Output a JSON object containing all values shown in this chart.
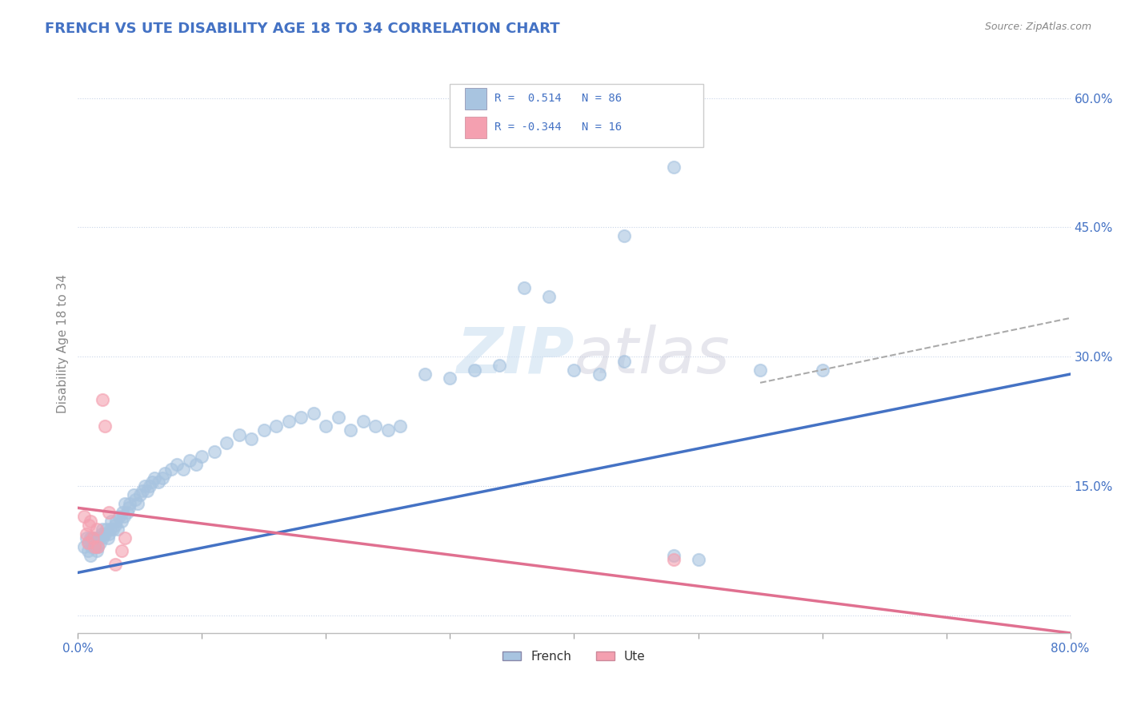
{
  "title": "FRENCH VS UTE DISABILITY AGE 18 TO 34 CORRELATION CHART",
  "source": "Source: ZipAtlas.com",
  "ylabel": "Disability Age 18 to 34",
  "xlim": [
    0.0,
    0.8
  ],
  "ylim": [
    -0.02,
    0.65
  ],
  "french_R": 0.514,
  "french_N": 86,
  "ute_R": -0.344,
  "ute_N": 16,
  "french_color": "#a8c4e0",
  "ute_color": "#f4a0b0",
  "french_line_color": "#4472c4",
  "ute_line_color": "#e07090",
  "dashed_color": "#aaaaaa",
  "watermark": "ZIPatlas",
  "background_color": "#ffffff",
  "grid_color": "#c8d4e8",
  "french_points": [
    [
      0.005,
      0.08
    ],
    [
      0.007,
      0.09
    ],
    [
      0.008,
      0.075
    ],
    [
      0.009,
      0.085
    ],
    [
      0.01,
      0.07
    ],
    [
      0.01,
      0.09
    ],
    [
      0.011,
      0.08
    ],
    [
      0.012,
      0.09
    ],
    [
      0.013,
      0.085
    ],
    [
      0.014,
      0.08
    ],
    [
      0.015,
      0.075
    ],
    [
      0.015,
      0.09
    ],
    [
      0.016,
      0.08
    ],
    [
      0.017,
      0.09
    ],
    [
      0.018,
      0.085
    ],
    [
      0.019,
      0.095
    ],
    [
      0.02,
      0.09
    ],
    [
      0.02,
      0.1
    ],
    [
      0.022,
      0.095
    ],
    [
      0.023,
      0.1
    ],
    [
      0.024,
      0.09
    ],
    [
      0.025,
      0.095
    ],
    [
      0.026,
      0.1
    ],
    [
      0.027,
      0.11
    ],
    [
      0.028,
      0.1
    ],
    [
      0.03,
      0.105
    ],
    [
      0.031,
      0.11
    ],
    [
      0.032,
      0.1
    ],
    [
      0.033,
      0.115
    ],
    [
      0.035,
      0.11
    ],
    [
      0.036,
      0.12
    ],
    [
      0.037,
      0.115
    ],
    [
      0.038,
      0.13
    ],
    [
      0.04,
      0.12
    ],
    [
      0.041,
      0.125
    ],
    [
      0.042,
      0.13
    ],
    [
      0.045,
      0.14
    ],
    [
      0.046,
      0.135
    ],
    [
      0.048,
      0.13
    ],
    [
      0.05,
      0.14
    ],
    [
      0.052,
      0.145
    ],
    [
      0.054,
      0.15
    ],
    [
      0.056,
      0.145
    ],
    [
      0.058,
      0.15
    ],
    [
      0.06,
      0.155
    ],
    [
      0.062,
      0.16
    ],
    [
      0.065,
      0.155
    ],
    [
      0.068,
      0.16
    ],
    [
      0.07,
      0.165
    ],
    [
      0.075,
      0.17
    ],
    [
      0.08,
      0.175
    ],
    [
      0.085,
      0.17
    ],
    [
      0.09,
      0.18
    ],
    [
      0.095,
      0.175
    ],
    [
      0.1,
      0.185
    ],
    [
      0.11,
      0.19
    ],
    [
      0.12,
      0.2
    ],
    [
      0.13,
      0.21
    ],
    [
      0.14,
      0.205
    ],
    [
      0.15,
      0.215
    ],
    [
      0.16,
      0.22
    ],
    [
      0.17,
      0.225
    ],
    [
      0.18,
      0.23
    ],
    [
      0.19,
      0.235
    ],
    [
      0.2,
      0.22
    ],
    [
      0.21,
      0.23
    ],
    [
      0.22,
      0.215
    ],
    [
      0.23,
      0.225
    ],
    [
      0.24,
      0.22
    ],
    [
      0.25,
      0.215
    ],
    [
      0.26,
      0.22
    ],
    [
      0.28,
      0.28
    ],
    [
      0.3,
      0.275
    ],
    [
      0.32,
      0.285
    ],
    [
      0.34,
      0.29
    ],
    [
      0.36,
      0.38
    ],
    [
      0.38,
      0.37
    ],
    [
      0.4,
      0.285
    ],
    [
      0.42,
      0.28
    ],
    [
      0.44,
      0.295
    ],
    [
      0.48,
      0.07
    ],
    [
      0.5,
      0.065
    ],
    [
      0.55,
      0.285
    ],
    [
      0.6,
      0.285
    ],
    [
      0.48,
      0.52
    ],
    [
      0.44,
      0.44
    ]
  ],
  "ute_points": [
    [
      0.005,
      0.115
    ],
    [
      0.007,
      0.095
    ],
    [
      0.008,
      0.085
    ],
    [
      0.009,
      0.105
    ],
    [
      0.01,
      0.11
    ],
    [
      0.012,
      0.09
    ],
    [
      0.013,
      0.08
    ],
    [
      0.015,
      0.1
    ],
    [
      0.016,
      0.08
    ],
    [
      0.02,
      0.25
    ],
    [
      0.022,
      0.22
    ],
    [
      0.025,
      0.12
    ],
    [
      0.03,
      0.06
    ],
    [
      0.035,
      0.075
    ],
    [
      0.038,
      0.09
    ],
    [
      0.48,
      0.065
    ]
  ],
  "french_line": [
    0.0,
    0.05,
    0.8,
    0.28
  ],
  "ute_line": [
    0.0,
    0.125,
    0.8,
    -0.02
  ],
  "dashed_line": [
    0.55,
    0.27,
    0.8,
    0.345
  ]
}
